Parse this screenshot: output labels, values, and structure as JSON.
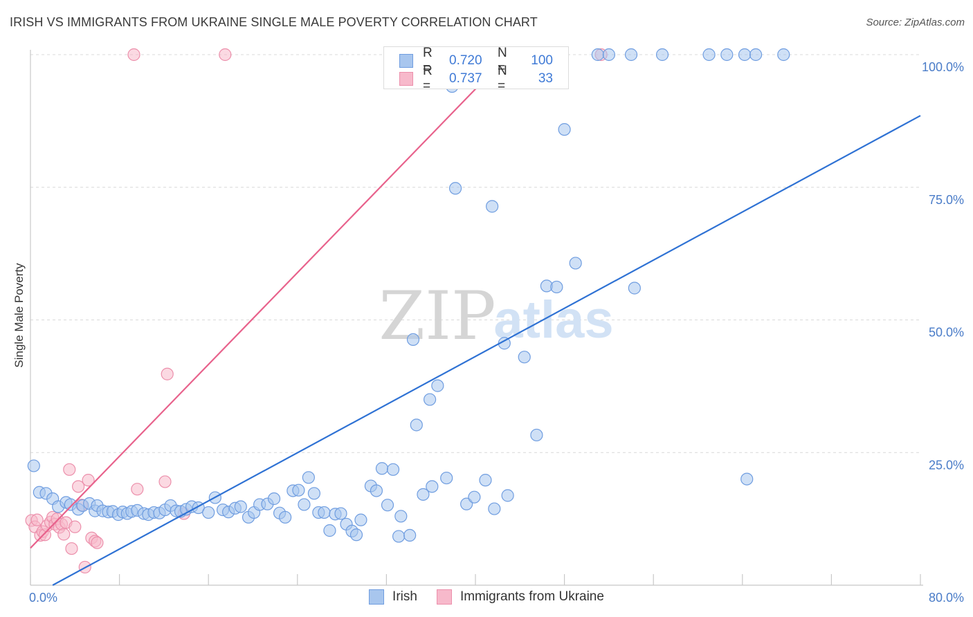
{
  "header": {
    "title": "IRISH VS IMMIGRANTS FROM UKRAINE SINGLE MALE POVERTY CORRELATION CHART",
    "source": "Source: ZipAtlas.com"
  },
  "watermark": {
    "zip": "ZIP",
    "atlas": "atlas"
  },
  "colors": {
    "irish_fill": "#a8c6ee",
    "irish_stroke": "#6f9de0",
    "irish_line": "#2f72d4",
    "ukraine_fill": "#f7b9cb",
    "ukraine_stroke": "#ec8fab",
    "ukraine_line": "#e8628c",
    "grid": "#d8d8d8",
    "tick_text": "#4a7cc8"
  },
  "legend_top": {
    "rows": [
      {
        "r_label": "R =",
        "r_value": "0.720",
        "n_label": "N =",
        "n_value": "100",
        "series": "irish"
      },
      {
        "r_label": "R =",
        "r_value": "0.737",
        "n_label": "N =",
        "n_value": "33",
        "series": "ukraine"
      }
    ]
  },
  "legend_bottom": {
    "items": [
      {
        "label": "Irish",
        "series": "irish"
      },
      {
        "label": "Immigrants from Ukraine",
        "series": "ukraine"
      }
    ]
  },
  "chart_data": {
    "type": "scatter",
    "title": "IRISH VS IMMIGRANTS FROM UKRAINE SINGLE MALE POVERTY CORRELATION CHART",
    "xlabel": "",
    "ylabel": "Single Male Poverty",
    "xlim": [
      0,
      80
    ],
    "ylim": [
      0,
      100
    ],
    "x_tick_labels": [
      {
        "value": 0,
        "label": "0.0%"
      },
      {
        "value": 80,
        "label": "80.0%"
      }
    ],
    "y_tick_labels": [
      {
        "value": 25,
        "label": "25.0%"
      },
      {
        "value": 50,
        "label": "50.0%"
      },
      {
        "value": 75,
        "label": "75.0%"
      },
      {
        "value": 100,
        "label": "100.0%"
      }
    ],
    "grid": true,
    "legend_position": "top-center",
    "series": [
      {
        "name": "Irish",
        "key": "irish",
        "trend": {
          "x": [
            2.0,
            80.0
          ],
          "y": [
            0,
            88.5
          ]
        },
        "points": [
          [
            0.3,
            22.5
          ],
          [
            0.8,
            17.5
          ],
          [
            1.4,
            17.3
          ],
          [
            2.0,
            16.3
          ],
          [
            2.5,
            14.8
          ],
          [
            3.2,
            15.6
          ],
          [
            3.6,
            15.2
          ],
          [
            4.3,
            14.3
          ],
          [
            4.7,
            15.0
          ],
          [
            5.3,
            15.4
          ],
          [
            5.8,
            14.0
          ],
          [
            6.0,
            15.0
          ],
          [
            6.5,
            14.0
          ],
          [
            7.0,
            13.8
          ],
          [
            7.4,
            13.9
          ],
          [
            7.9,
            13.3
          ],
          [
            8.3,
            13.8
          ],
          [
            8.7,
            13.5
          ],
          [
            9.1,
            13.9
          ],
          [
            9.6,
            14.1
          ],
          [
            10.2,
            13.5
          ],
          [
            10.6,
            13.3
          ],
          [
            11.1,
            13.7
          ],
          [
            11.6,
            13.6
          ],
          [
            12.1,
            14.2
          ],
          [
            12.6,
            15.0
          ],
          [
            13.1,
            14.0
          ],
          [
            13.5,
            13.9
          ],
          [
            14.0,
            14.3
          ],
          [
            14.5,
            14.8
          ],
          [
            15.1,
            14.6
          ],
          [
            16.0,
            13.7
          ],
          [
            16.6,
            16.5
          ],
          [
            17.3,
            14.2
          ],
          [
            17.8,
            13.8
          ],
          [
            18.4,
            14.5
          ],
          [
            18.9,
            14.8
          ],
          [
            19.6,
            12.8
          ],
          [
            20.1,
            13.7
          ],
          [
            20.6,
            15.2
          ],
          [
            21.3,
            15.3
          ],
          [
            21.9,
            16.3
          ],
          [
            22.4,
            13.6
          ],
          [
            22.9,
            12.8
          ],
          [
            23.6,
            17.8
          ],
          [
            24.1,
            17.9
          ],
          [
            24.6,
            15.2
          ],
          [
            25.0,
            20.3
          ],
          [
            25.5,
            17.3
          ],
          [
            25.9,
            13.7
          ],
          [
            26.4,
            13.7
          ],
          [
            26.9,
            10.3
          ],
          [
            27.4,
            13.4
          ],
          [
            27.9,
            13.5
          ],
          [
            28.4,
            11.5
          ],
          [
            28.9,
            10.2
          ],
          [
            29.3,
            9.5
          ],
          [
            29.7,
            12.3
          ],
          [
            30.6,
            18.7
          ],
          [
            31.1,
            17.8
          ],
          [
            31.6,
            22.0
          ],
          [
            32.1,
            15.1
          ],
          [
            32.6,
            21.8
          ],
          [
            33.1,
            9.2
          ],
          [
            33.3,
            13.0
          ],
          [
            34.1,
            9.4
          ],
          [
            34.4,
            46.3
          ],
          [
            34.7,
            30.2
          ],
          [
            35.3,
            17.1
          ],
          [
            35.9,
            35.0
          ],
          [
            36.1,
            18.6
          ],
          [
            36.6,
            37.6
          ],
          [
            37.4,
            20.2
          ],
          [
            37.9,
            94.0
          ],
          [
            38.2,
            74.8
          ],
          [
            39.2,
            15.3
          ],
          [
            39.9,
            16.6
          ],
          [
            40.9,
            19.8
          ],
          [
            41.5,
            71.4
          ],
          [
            41.7,
            14.4
          ],
          [
            42.6,
            45.6
          ],
          [
            42.9,
            16.9
          ],
          [
            44.4,
            43.0
          ],
          [
            45.5,
            28.3
          ],
          [
            46.4,
            56.4
          ],
          [
            47.3,
            56.2
          ],
          [
            48.0,
            85.9
          ],
          [
            49.0,
            60.7
          ],
          [
            51.0,
            100
          ],
          [
            52.0,
            100
          ],
          [
            54.0,
            100
          ],
          [
            54.3,
            56.0
          ],
          [
            56.8,
            100
          ],
          [
            61.0,
            100
          ],
          [
            62.6,
            100
          ],
          [
            64.2,
            100
          ],
          [
            64.4,
            20.0
          ],
          [
            65.2,
            100
          ],
          [
            67.7,
            100
          ],
          [
            42.5,
            100
          ]
        ]
      },
      {
        "name": "Immigrants from Ukraine",
        "key": "ukraine",
        "trend": {
          "x": [
            0.0,
            43.0
          ],
          "y": [
            7.0,
            100
          ]
        },
        "points": [
          [
            0.1,
            12.2
          ],
          [
            0.4,
            11.0
          ],
          [
            0.6,
            12.3
          ],
          [
            0.9,
            9.4
          ],
          [
            1.1,
            10.1
          ],
          [
            1.3,
            9.5
          ],
          [
            1.5,
            11.2
          ],
          [
            1.8,
            11.9
          ],
          [
            2.0,
            12.8
          ],
          [
            2.2,
            11.5
          ],
          [
            2.4,
            12.5
          ],
          [
            2.6,
            10.9
          ],
          [
            2.8,
            11.5
          ],
          [
            3.0,
            9.6
          ],
          [
            3.2,
            11.8
          ],
          [
            3.5,
            21.8
          ],
          [
            3.7,
            6.9
          ],
          [
            4.0,
            11.0
          ],
          [
            4.3,
            18.6
          ],
          [
            4.6,
            15.1
          ],
          [
            4.9,
            3.4
          ],
          [
            5.2,
            19.8
          ],
          [
            5.5,
            8.9
          ],
          [
            5.8,
            8.3
          ],
          [
            6.0,
            8.0
          ],
          [
            9.3,
            100
          ],
          [
            9.6,
            18.1
          ],
          [
            12.1,
            19.5
          ],
          [
            12.3,
            39.8
          ],
          [
            13.8,
            13.5
          ],
          [
            17.5,
            100
          ],
          [
            41.0,
            100
          ],
          [
            51.3,
            100
          ]
        ]
      }
    ]
  }
}
